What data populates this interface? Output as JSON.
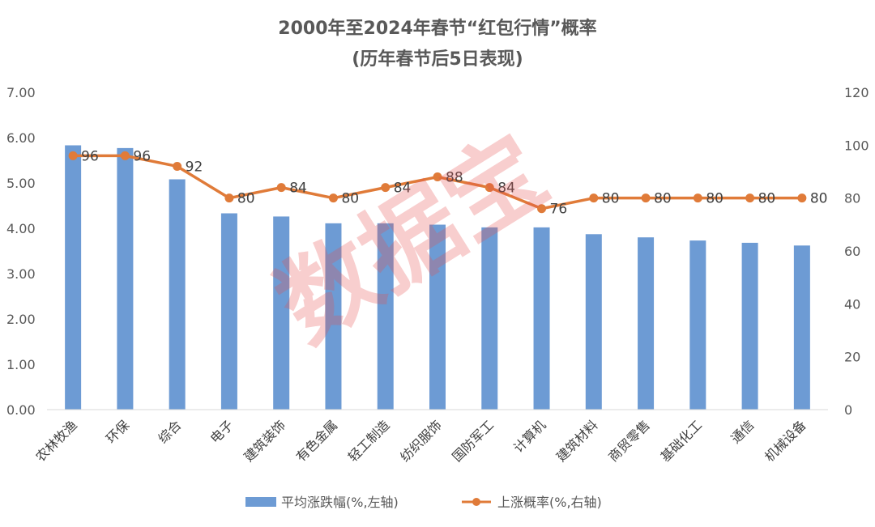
{
  "chart_data": {
    "type": "bar+line",
    "title": "2000年至2024年春节“红包行情”概率",
    "subtitle": "(历年春节后5日表现)",
    "categories": [
      "农林牧渔",
      "环保",
      "综合",
      "电子",
      "建筑装饰",
      "有色金属",
      "轻工制造",
      "纺织服饰",
      "国防军工",
      "计算机",
      "建筑材料",
      "商贸零售",
      "基础化工",
      "通信",
      "机械设备"
    ],
    "series": [
      {
        "name": "平均涨跌幅(%,左轴)",
        "kind": "bar",
        "axis": "left",
        "color": "#6d9bd4",
        "values": [
          5.83,
          5.77,
          5.08,
          4.33,
          4.26,
          4.11,
          4.11,
          4.08,
          4.02,
          4.02,
          3.87,
          3.8,
          3.73,
          3.68,
          3.62
        ]
      },
      {
        "name": "上涨概率(%,右轴)",
        "kind": "line",
        "axis": "right",
        "color": "#e07b39",
        "values": [
          96,
          96,
          92,
          80,
          84,
          80,
          84,
          88,
          84,
          76,
          80,
          80,
          80,
          80,
          80
        ],
        "labels": [
          "96",
          "96",
          "92",
          "80",
          "84",
          "80",
          "84",
          "88",
          "84",
          "76",
          "80",
          "80",
          "80",
          "80",
          "80"
        ]
      }
    ],
    "left_axis": {
      "min": 0,
      "max": 7,
      "ticks": [
        "0.00",
        "1.00",
        "2.00",
        "3.00",
        "4.00",
        "5.00",
        "6.00",
        "7.00"
      ]
    },
    "right_axis": {
      "min": 0,
      "max": 120,
      "ticks": [
        "0",
        "20",
        "40",
        "60",
        "80",
        "100",
        "120"
      ]
    },
    "legend_position": "bottom",
    "gridlines": false,
    "watermark": "数据宝"
  }
}
